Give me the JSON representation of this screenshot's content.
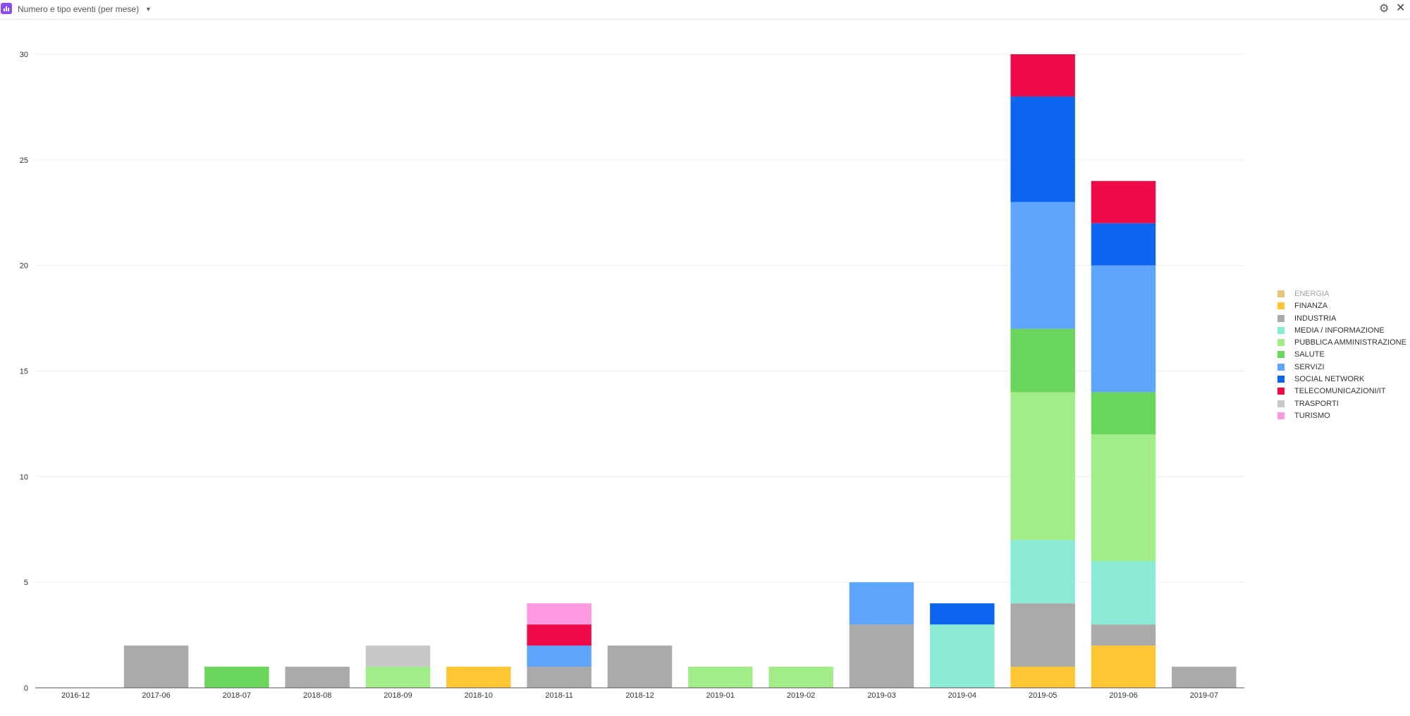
{
  "header": {
    "title": "Numero e tipo eventi (per mese)",
    "icons": {
      "app": "bar-chart-icon",
      "dropdown": "chevron-down-icon",
      "settings": "gear-icon",
      "close": "close-icon"
    }
  },
  "chart_data": {
    "type": "bar",
    "stacked": true,
    "title": "",
    "xlabel": "",
    "ylabel": "",
    "ylim": [
      0,
      30
    ],
    "yticks": [
      0,
      5,
      10,
      15,
      20,
      25,
      30
    ],
    "grid": true,
    "legend_position": "right",
    "categories": [
      "2016-12",
      "2017-06",
      "2018-07",
      "2018-08",
      "2018-09",
      "2018-10",
      "2018-11",
      "2018-12",
      "2019-01",
      "2019-02",
      "2019-03",
      "2019-04",
      "2019-05",
      "2019-06",
      "2019-07"
    ],
    "series": [
      {
        "name": "ENERGIA",
        "color": "#e6c47a",
        "muted": true,
        "values": [
          0,
          0,
          0,
          0,
          0,
          0,
          0,
          0,
          0,
          0,
          0,
          0,
          0,
          0,
          0
        ]
      },
      {
        "name": "FINANZA",
        "color": "#ffc633",
        "values": [
          0,
          0,
          0,
          0,
          0,
          1,
          0,
          0,
          0,
          0,
          0,
          0,
          1,
          2,
          0
        ]
      },
      {
        "name": "INDUSTRIA",
        "color": "#aaaaaa",
        "values": [
          0,
          2,
          0,
          1,
          0,
          0,
          1,
          2,
          0,
          0,
          3,
          0,
          3,
          1,
          1
        ]
      },
      {
        "name": "MEDIA / INFORMAZIONE",
        "color": "#8aead4",
        "values": [
          0,
          0,
          0,
          0,
          0,
          0,
          0,
          0,
          0,
          0,
          0,
          3,
          3,
          3,
          0
        ]
      },
      {
        "name": "PUBBLICA AMMINISTRAZIONE",
        "color": "#a3ed88",
        "values": [
          0,
          0,
          0,
          0,
          1,
          0,
          0,
          0,
          1,
          1,
          0,
          0,
          7,
          6,
          0
        ]
      },
      {
        "name": "SALUTE",
        "color": "#6bd65c",
        "values": [
          0,
          0,
          1,
          0,
          0,
          0,
          0,
          0,
          0,
          0,
          0,
          0,
          3,
          2,
          0
        ]
      },
      {
        "name": "SERVIZI",
        "color": "#5ea5fd",
        "values": [
          0,
          0,
          0,
          0,
          0,
          0,
          1,
          0,
          0,
          0,
          2,
          0,
          6,
          6,
          0
        ]
      },
      {
        "name": "SOCIAL NETWORK",
        "color": "#0b65ee",
        "values": [
          0,
          0,
          0,
          0,
          0,
          0,
          0,
          0,
          0,
          0,
          0,
          1,
          5,
          2,
          0
        ]
      },
      {
        "name": "TELECOMUNICAZIONI/IT",
        "color": "#ee0a47",
        "values": [
          0,
          0,
          0,
          0,
          0,
          0,
          1,
          0,
          0,
          0,
          0,
          0,
          2,
          2,
          0
        ]
      },
      {
        "name": "TRASPORTI",
        "color": "#c8c8c8",
        "values": [
          0,
          0,
          0,
          0,
          1,
          0,
          0,
          0,
          0,
          0,
          0,
          0,
          0,
          0,
          0
        ]
      },
      {
        "name": "TURISMO",
        "color": "#fc99e0",
        "values": [
          0,
          0,
          0,
          0,
          0,
          0,
          1,
          0,
          0,
          0,
          0,
          0,
          0,
          0,
          0
        ]
      }
    ]
  }
}
